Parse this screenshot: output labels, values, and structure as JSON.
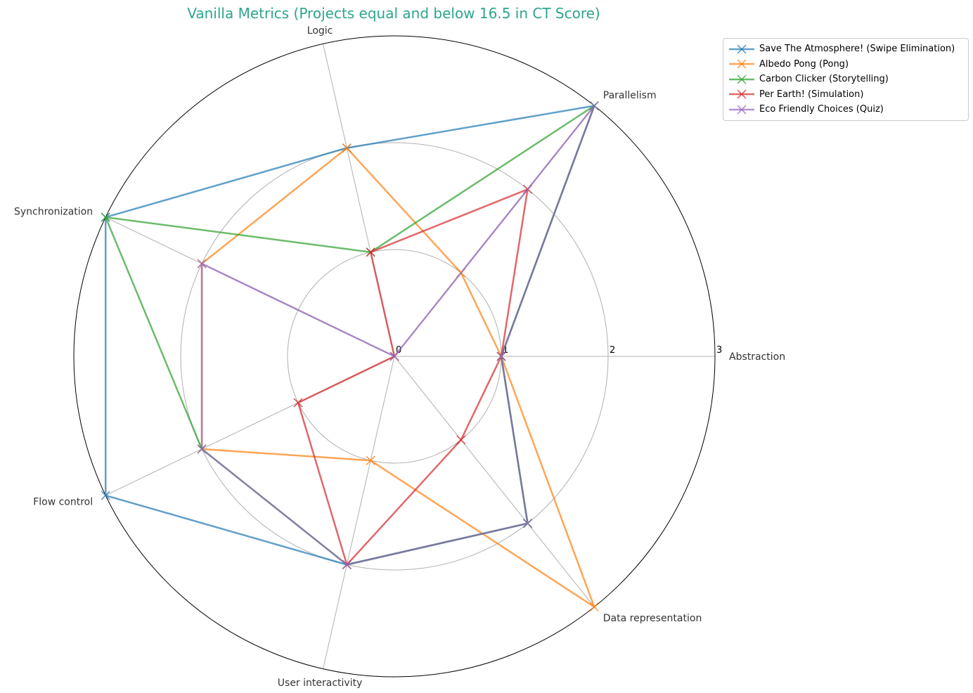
{
  "chart_data": {
    "type": "radar",
    "title": "Vanilla Metrics (Projects equal and below 16.5 in CT Score)",
    "title_color": "#2ca58d",
    "categories": [
      "Abstraction",
      "Parallelism",
      "Logic",
      "Synchronization",
      "Flow control",
      "User interactivity",
      "Data representation"
    ],
    "rlim": [
      0,
      3
    ],
    "radial_ticks": [
      "0",
      "1",
      "2",
      "3"
    ],
    "grid": true,
    "legend_position": "upper-right, outside plot",
    "series": [
      {
        "name": "Save The Atmosphere! (Swipe Elimination)",
        "color": "#1f77b4",
        "values": [
          1,
          3,
          2,
          3,
          3,
          2,
          2
        ]
      },
      {
        "name": "Albedo Pong (Pong)",
        "color": "#ff7f0e",
        "values": [
          1,
          1,
          2,
          2,
          2,
          1,
          3
        ]
      },
      {
        "name": "Carbon Clicker (Storytelling)",
        "color": "#2ca02c",
        "values": [
          1,
          3,
          1,
          3,
          2,
          2,
          2
        ]
      },
      {
        "name": "Per Earth! (Simulation)",
        "color": "#d62728",
        "values": [
          1,
          2,
          1,
          0,
          1,
          2,
          1
        ]
      },
      {
        "name": "Eco Friendly Choices (Quiz)",
        "color": "#9467bd",
        "values": [
          1,
          3,
          0,
          2,
          2,
          2,
          2
        ]
      }
    ]
  }
}
